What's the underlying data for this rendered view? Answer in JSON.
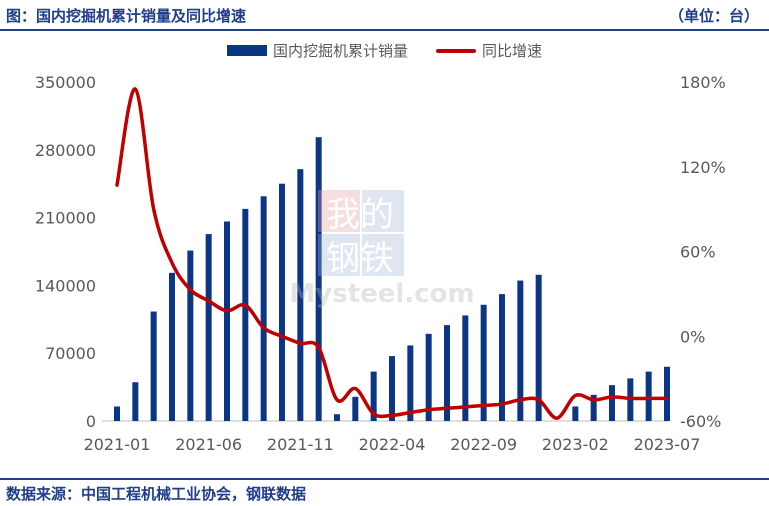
{
  "header": {
    "title": "图：国内挖掘机累计销量及同比增速",
    "unit": "（单位：台）"
  },
  "footer": {
    "source": "数据来源：中国工程机械工业协会，钢联数据"
  },
  "watermark": {
    "top": "我的",
    "bottom": "钢铁",
    "brand": "Mysteel.com"
  },
  "colors": {
    "bar": "#0b3585",
    "line": "#c00000",
    "accent": "#1f3d8a"
  },
  "chart_data": {
    "type": "bar",
    "x_tick_labels": [
      "2021-01",
      "2021-06",
      "2021-11",
      "2022-04",
      "2022-09",
      "2023-02",
      "2023-07"
    ],
    "categories": [
      "2021-01",
      "2021-02",
      "2021-03",
      "2021-04",
      "2021-05",
      "2021-06",
      "2021-07",
      "2021-08",
      "2021-09",
      "2021-10",
      "2021-11",
      "2021-12",
      "2022-01",
      "2022-02",
      "2022-03",
      "2022-04",
      "2022-05",
      "2022-06",
      "2022-07",
      "2022-08",
      "2022-09",
      "2022-10",
      "2022-11",
      "2022-12",
      "2023-01",
      "2023-02",
      "2023-03",
      "2023-04",
      "2023-05",
      "2023-06",
      "2023-07"
    ],
    "series": [
      {
        "name": "国内挖掘机累计销量",
        "type": "bar",
        "axis": "left",
        "values": [
          15000,
          40000,
          113000,
          153000,
          176000,
          193000,
          206000,
          219000,
          232000,
          245000,
          260000,
          293000,
          7000,
          25000,
          51000,
          67000,
          78000,
          90000,
          99000,
          109000,
          120000,
          131000,
          145000,
          151000,
          null,
          15000,
          27000,
          37000,
          44000,
          51000,
          56000
        ]
      },
      {
        "name": "同比增速",
        "type": "line",
        "axis": "right",
        "values": [
          107,
          175,
          90,
          52,
          33,
          25,
          18,
          22,
          6,
          0,
          -5,
          -8,
          -45,
          -37,
          -55,
          -56,
          -54,
          -52,
          -51,
          -50,
          -49,
          -48,
          -45,
          -45,
          -58,
          -42,
          -45,
          -43,
          -44,
          -44,
          -44
        ]
      }
    ],
    "y_left": {
      "min": 0,
      "max": 350000,
      "ticks": [
        "0",
        "70000",
        "140000",
        "210000",
        "280000",
        "350000"
      ]
    },
    "y_right": {
      "min": -60,
      "max": 180,
      "ticks": [
        "-60%",
        "0%",
        "60%",
        "120%",
        "180%"
      ]
    },
    "legend": "top-center",
    "grid": false
  }
}
